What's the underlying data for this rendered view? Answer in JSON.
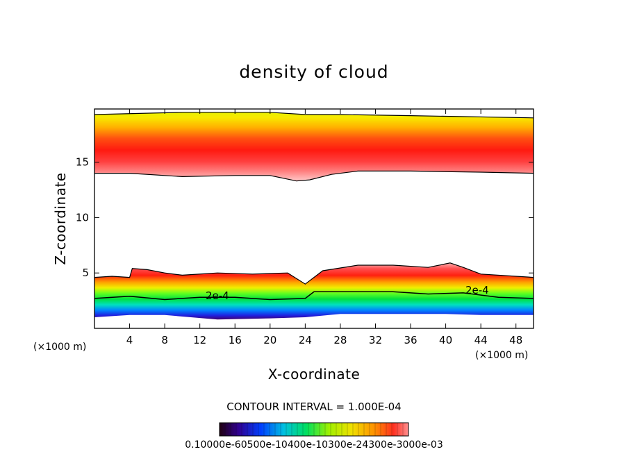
{
  "chart_data": {
    "type": "heatmap",
    "title": "density of cloud",
    "xlabel": "X-coordinate",
    "ylabel": "Z-coordinate",
    "x_unit": "(×1000 m)",
    "z_unit": "(×1000 m)",
    "xlim": [
      0,
      50
    ],
    "ylim": [
      0,
      19.8
    ],
    "x_ticks": [
      "4",
      "8",
      "12",
      "16",
      "20",
      "24",
      "28",
      "32",
      "36",
      "40",
      "44",
      "48"
    ],
    "y_ticks": [
      "5",
      "10",
      "15"
    ],
    "contour_interval_label": "CONTOUR INTERVAL = 1.000E-04",
    "contour_labels": [
      "2e-4",
      "2e-4"
    ],
    "colorbar": {
      "label": "0.10000e-60500e-10400e-10300e-24300e-3000e-03",
      "min": 0.0,
      "max": 0.0003
    },
    "upper_layer": {
      "base_km": [
        [
          0,
          14.0
        ],
        [
          4,
          14.0
        ],
        [
          10,
          13.7
        ],
        [
          16,
          13.8
        ],
        [
          20,
          13.8
        ],
        [
          23,
          13.3
        ],
        [
          24.5,
          13.4
        ],
        [
          27,
          13.9
        ],
        [
          30,
          14.2
        ],
        [
          36,
          14.2
        ],
        [
          44,
          14.1
        ],
        [
          50,
          14.0
        ]
      ],
      "peak_km": [
        [
          0,
          15.6
        ],
        [
          10,
          15.6
        ],
        [
          20,
          15.6
        ],
        [
          24,
          15.2
        ],
        [
          28,
          15.6
        ],
        [
          36,
          15.7
        ],
        [
          50,
          15.6
        ]
      ],
      "top_km": [
        [
          0,
          19.3
        ],
        [
          10,
          19.5
        ],
        [
          20,
          19.5
        ],
        [
          24,
          19.3
        ],
        [
          28,
          19.3
        ],
        [
          36,
          19.2
        ],
        [
          50,
          19.0
        ]
      ]
    },
    "lower_layer": {
      "top_km": [
        [
          0,
          4.6
        ],
        [
          2,
          4.7
        ],
        [
          4,
          4.6
        ],
        [
          4.3,
          5.4
        ],
        [
          6,
          5.3
        ],
        [
          8,
          5.0
        ],
        [
          10,
          4.8
        ],
        [
          14,
          5.0
        ],
        [
          18,
          4.9
        ],
        [
          22,
          5.0
        ],
        [
          24,
          4.0
        ],
        [
          26,
          5.2
        ],
        [
          30,
          5.7
        ],
        [
          34,
          5.7
        ],
        [
          38,
          5.5
        ],
        [
          40.5,
          5.9
        ],
        [
          42,
          5.5
        ],
        [
          44,
          4.9
        ],
        [
          50,
          4.6
        ]
      ],
      "contour_2e4_km": [
        [
          0,
          2.7
        ],
        [
          4,
          2.9
        ],
        [
          8,
          2.6
        ],
        [
          12,
          2.8
        ],
        [
          16,
          2.8
        ],
        [
          20,
          2.6
        ],
        [
          24,
          2.7
        ],
        [
          25,
          3.3
        ],
        [
          30,
          3.3
        ],
        [
          34,
          3.3
        ],
        [
          38,
          3.1
        ],
        [
          42,
          3.2
        ],
        [
          46,
          2.8
        ],
        [
          50,
          2.7
        ]
      ],
      "base_km": [
        [
          0,
          1.0
        ],
        [
          4,
          1.2
        ],
        [
          8,
          1.2
        ],
        [
          14,
          0.8
        ],
        [
          20,
          0.9
        ],
        [
          24,
          1.0
        ],
        [
          28,
          1.3
        ],
        [
          34,
          1.3
        ],
        [
          40,
          1.3
        ],
        [
          44,
          1.2
        ],
        [
          50,
          1.2
        ]
      ]
    }
  }
}
